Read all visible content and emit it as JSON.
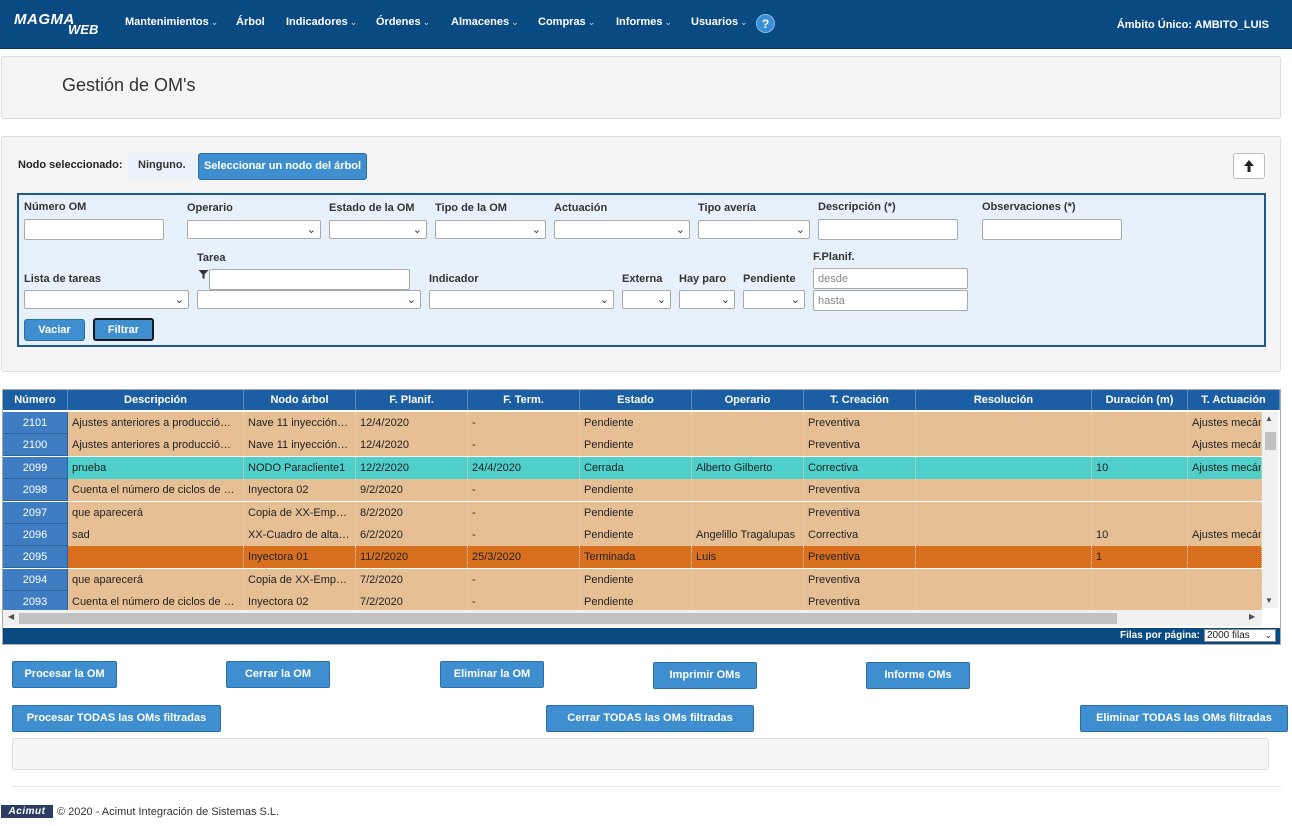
{
  "nav": {
    "logo_top": "MAGMA",
    "logo_bottom": "WEB",
    "items": [
      {
        "label": "Mantenimientos",
        "caret": true
      },
      {
        "label": "Árbol",
        "caret": false
      },
      {
        "label": "Indicadores",
        "caret": true
      },
      {
        "label": "Órdenes",
        "caret": true
      },
      {
        "label": "Almacenes",
        "caret": true
      },
      {
        "label": "Compras",
        "caret": true
      },
      {
        "label": "Informes",
        "caret": true
      },
      {
        "label": "Usuarios",
        "caret": true
      }
    ],
    "help": "?",
    "scope": "Ámbito Único: AMBITO_LUIS"
  },
  "page": {
    "title": "Gestión de OM's"
  },
  "node": {
    "label": "Nodo seleccionado:",
    "value": "Ninguno.",
    "select_button": "Seleccionar un nodo del árbol",
    "up_icon": "arrow-up-icon"
  },
  "filters": {
    "numero_om": "Número OM",
    "operario": "Operario",
    "estado": "Estado de la OM",
    "tipo": "Tipo de la OM",
    "actuacion": "Actuación",
    "tipo_averia": "Tipo avería",
    "descripcion": "Descripción (*)",
    "observaciones": "Observaciones (*)",
    "lista_tareas": "Lista de tareas",
    "tarea": "Tarea",
    "indicador": "Indicador",
    "externa": "Externa",
    "hay_paro": "Hay paro",
    "pendiente": "Pendiente",
    "fplanif": "F.Planif.",
    "desde": "desde",
    "hasta": "hasta",
    "vaciar": "Vaciar",
    "filtrar": "Filtrar"
  },
  "grid": {
    "columns": [
      "Número",
      "Descripción",
      "Nodo árbol",
      "F. Planif.",
      "F. Term.",
      "Estado",
      "Operario",
      "T. Creación",
      "Resolución",
      "Duración (m)",
      "T. Actuación"
    ],
    "rows": [
      {
        "numero": "2101",
        "descripcion": "Ajustes anteriores a producció…",
        "nodo": "Nave 11 inyección…",
        "fplanif": "12/4/2020",
        "fterm": "-",
        "estado": "Pendiente",
        "operario": "",
        "tcreacion": "Preventiva",
        "resolucion": "",
        "duracion": "",
        "tactuacion": "Ajustes mecán",
        "color": "#e6bf95"
      },
      {
        "numero": "2100",
        "descripcion": "Ajustes anteriores a producció…",
        "nodo": "Nave 11 inyección…",
        "fplanif": "12/4/2020",
        "fterm": "-",
        "estado": "Pendiente",
        "operario": "",
        "tcreacion": "Preventiva",
        "resolucion": "",
        "duracion": "",
        "tactuacion": "Ajustes mecán",
        "color": "#e6bf95"
      },
      {
        "numero": "2099",
        "descripcion": "prueba",
        "nodo": "NODO Paracliente1",
        "fplanif": "12/2/2020",
        "fterm": "24/4/2020",
        "estado": "Cerrada",
        "operario": "Alberto Gilberto",
        "tcreacion": "Correctiva",
        "resolucion": "",
        "duracion": "10",
        "tactuacion": "Ajustes mecán",
        "color": "#4ecfc9"
      },
      {
        "numero": "2098",
        "descripcion": "Cuenta el número de ciclos de …",
        "nodo": "Inyectora 02",
        "fplanif": "9/2/2020",
        "fterm": "-",
        "estado": "Pendiente",
        "operario": "",
        "tcreacion": "Preventiva",
        "resolucion": "",
        "duracion": "",
        "tactuacion": "",
        "color": "#e6bf95"
      },
      {
        "numero": "2097",
        "descripcion": "que aparecerá",
        "nodo": "Copia de XX-Emp…",
        "fplanif": "8/2/2020",
        "fterm": "-",
        "estado": "Pendiente",
        "operario": "",
        "tcreacion": "Preventiva",
        "resolucion": "",
        "duracion": "",
        "tactuacion": "",
        "color": "#e6bf95"
      },
      {
        "numero": "2096",
        "descripcion": "sad",
        "nodo": "XX-Cuadro de alta…",
        "fplanif": "6/2/2020",
        "fterm": "-",
        "estado": "Pendiente",
        "operario": "Angelillo Tragalupas",
        "tcreacion": "Correctiva",
        "resolucion": "",
        "duracion": "10",
        "tactuacion": "Ajustes mecán",
        "color": "#e6bf95"
      },
      {
        "numero": "2095",
        "descripcion": "",
        "nodo": "Inyectora 01",
        "fplanif": "11/2/2020",
        "fterm": "25/3/2020",
        "estado": "Terminada",
        "operario": "Luis",
        "tcreacion": "Preventiva",
        "resolucion": "",
        "duracion": "1",
        "tactuacion": "",
        "color": "#d9701f"
      },
      {
        "numero": "2094",
        "descripcion": "que aparecerá",
        "nodo": "Copia de XX-Emp…",
        "fplanif": "7/2/2020",
        "fterm": "-",
        "estado": "Pendiente",
        "operario": "",
        "tcreacion": "Preventiva",
        "resolucion": "",
        "duracion": "",
        "tactuacion": "",
        "color": "#e6bf95"
      },
      {
        "numero": "2093",
        "descripcion": "Cuenta el número de ciclos de …",
        "nodo": "Inyectora 02",
        "fplanif": "7/2/2020",
        "fterm": "-",
        "estado": "Pendiente",
        "operario": "",
        "tcreacion": "Preventiva",
        "resolucion": "",
        "duracion": "",
        "tactuacion": "",
        "color": "#e6bf95"
      }
    ],
    "rows_label": "Filas por página:",
    "rows_value": "2000 filas"
  },
  "actions": {
    "procesar": "Procesar la OM",
    "cerrar": "Cerrar la OM",
    "eliminar": "Eliminar la OM",
    "imprimir": "Imprimir OMs",
    "informe": "Informe OMs",
    "procesar_todas": "Procesar TODAS las OMs filtradas",
    "cerrar_todas": "Cerrar TODAS las OMs filtradas",
    "eliminar_todas": "Eliminar TODAS las OMs filtradas"
  },
  "footer": {
    "logo": "Acimut",
    "text": "© 2020 - Acimut Integración de Sistemas S.L."
  }
}
